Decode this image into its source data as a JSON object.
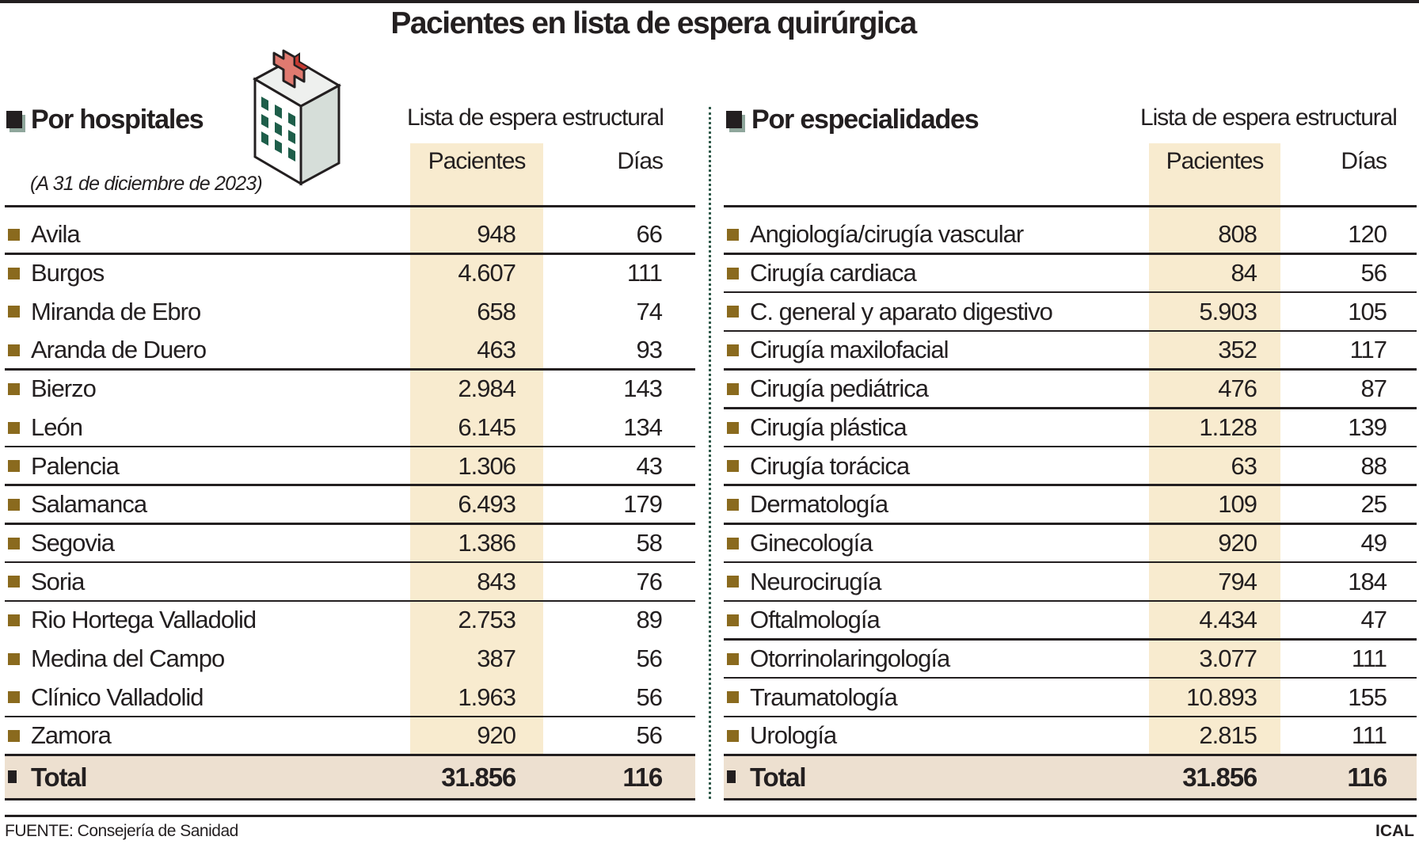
{
  "title": "Pacientes en lista de espera quirúrgica",
  "colors": {
    "highlight": "#f8ebcf",
    "total_bg": "#ede0d0",
    "bullet": "#8a6a1e",
    "divider": "#2f5a4a",
    "cross": "#e07a70",
    "windows": "#1e5e4a"
  },
  "hospitals": {
    "heading": "Por hospitales",
    "date_note": "(A 31 de diciembre de 2023)",
    "group_label": "Lista de espera estructural",
    "col_patients": "Pacientes",
    "col_days": "Días",
    "rows": [
      {
        "name": "Avila",
        "patients": "948",
        "days": "66"
      },
      {
        "name": "Burgos",
        "patients": "4.607",
        "days": "111"
      },
      {
        "name": "Miranda de Ebro",
        "patients": "658",
        "days": "74"
      },
      {
        "name": "Aranda de Duero",
        "patients": "463",
        "days": "93"
      },
      {
        "name": "Bierzo",
        "patients": "2.984",
        "days": "143"
      },
      {
        "name": "León",
        "patients": "6.145",
        "days": "134"
      },
      {
        "name": "Palencia",
        "patients": "1.306",
        "days": "43"
      },
      {
        "name": "Salamanca",
        "patients": "6.493",
        "days": "179"
      },
      {
        "name": "Segovia",
        "patients": "1.386",
        "days": "58"
      },
      {
        "name": "Soria",
        "patients": "843",
        "days": "76"
      },
      {
        "name": "Rio Hortega Valladolid",
        "patients": "2.753",
        "days": "89"
      },
      {
        "name": "Medina del Campo",
        "patients": "387",
        "days": "56"
      },
      {
        "name": "Clínico Valladolid",
        "patients": "1.963",
        "days": "56"
      },
      {
        "name": "Zamora",
        "patients": "920",
        "days": "56"
      }
    ],
    "total": {
      "name": "Total",
      "patients": "31.856",
      "days": "116"
    }
  },
  "specialties": {
    "heading": "Por especialidades",
    "group_label": "Lista de espera estructural",
    "col_patients": "Pacientes",
    "col_days": "Días",
    "rows": [
      {
        "name": "Angiología/cirugía vascular",
        "patients": "808",
        "days": "120"
      },
      {
        "name": "Cirugía cardiaca",
        "patients": "84",
        "days": "56"
      },
      {
        "name": "C. general y aparato digestivo",
        "patients": "5.903",
        "days": "105"
      },
      {
        "name": "Cirugía maxilofacial",
        "patients": "352",
        "days": "117"
      },
      {
        "name": "Cirugía pediátrica",
        "patients": "476",
        "days": "87"
      },
      {
        "name": "Cirugía plástica",
        "patients": "1.128",
        "days": "139"
      },
      {
        "name": "Cirugía torácica",
        "patients": "63",
        "days": "88"
      },
      {
        "name": "Dermatología",
        "patients": "109",
        "days": "25"
      },
      {
        "name": "Ginecología",
        "patients": "920",
        "days": "49"
      },
      {
        "name": "Neurocirugía",
        "patients": "794",
        "days": "184"
      },
      {
        "name": "Oftalmología",
        "patients": "4.434",
        "days": "47"
      },
      {
        "name": "Otorrinolaringología",
        "patients": "3.077",
        "days": "111"
      },
      {
        "name": "Traumatología",
        "patients": "10.893",
        "days": "155"
      },
      {
        "name": "Urología",
        "patients": "2.815",
        "days": "111"
      }
    ],
    "total": {
      "name": "Total",
      "patients": "31.856",
      "days": "116"
    }
  },
  "footer": {
    "source": "FUENTE: Consejería de Sanidad",
    "credit": "ICAL"
  }
}
